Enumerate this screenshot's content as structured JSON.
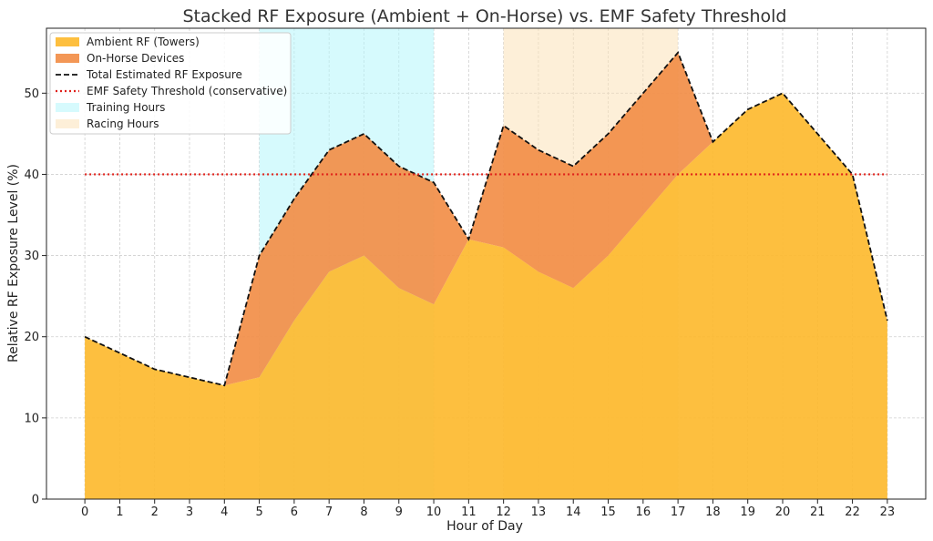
{
  "chart_data": {
    "type": "area",
    "stacked": true,
    "title": "Stacked RF Exposure (Ambient + On-Horse) vs. EMF Safety Threshold",
    "xlabel": "Hour of Day",
    "ylabel": "Relative RF Exposure Level (%)",
    "x": [
      0,
      1,
      2,
      3,
      4,
      5,
      6,
      7,
      8,
      9,
      10,
      11,
      12,
      13,
      14,
      15,
      16,
      17,
      18,
      19,
      20,
      21,
      22,
      23
    ],
    "xlim": [
      -1.1,
      24.1
    ],
    "ylim": [
      0,
      58
    ],
    "yticks": [
      0,
      10,
      20,
      30,
      40,
      50
    ],
    "grid": true,
    "legend_position": "upper-left",
    "series": [
      {
        "name": "Ambient RF (Towers)",
        "kind": "area",
        "color": "#fdba2f",
        "values": [
          20,
          18,
          16,
          15,
          14,
          15,
          22,
          28,
          30,
          26,
          24,
          32,
          31,
          28,
          26,
          30,
          35,
          40,
          44,
          48,
          50,
          45,
          40,
          22
        ]
      },
      {
        "name": "On-Horse Devices",
        "kind": "area",
        "color": "#f28e48",
        "values": [
          0,
          0,
          0,
          0,
          0,
          15,
          15,
          15,
          15,
          15,
          15,
          0,
          15,
          15,
          15,
          15,
          15,
          15,
          0,
          0,
          0,
          0,
          0,
          0
        ]
      },
      {
        "name": "Total Estimated RF Exposure",
        "kind": "line",
        "style": "dashed",
        "color": "#111111",
        "values": [
          20,
          18,
          16,
          15,
          14,
          30,
          37,
          43,
          45,
          41,
          39,
          32,
          46,
          43,
          41,
          45,
          50,
          55,
          44,
          48,
          50,
          45,
          40,
          22
        ]
      }
    ],
    "threshold": {
      "name": "EMF Safety Threshold (conservative)",
      "value": 40,
      "style": "dotted",
      "color": "#e0201a"
    },
    "bands": [
      {
        "name": "Training Hours",
        "from": 5,
        "to": 10,
        "color": "#b4f6fb",
        "opacity": 0.55
      },
      {
        "name": "Racing Hours",
        "from": 12,
        "to": 17,
        "color": "#fbe1b8",
        "opacity": 0.55
      }
    ]
  }
}
